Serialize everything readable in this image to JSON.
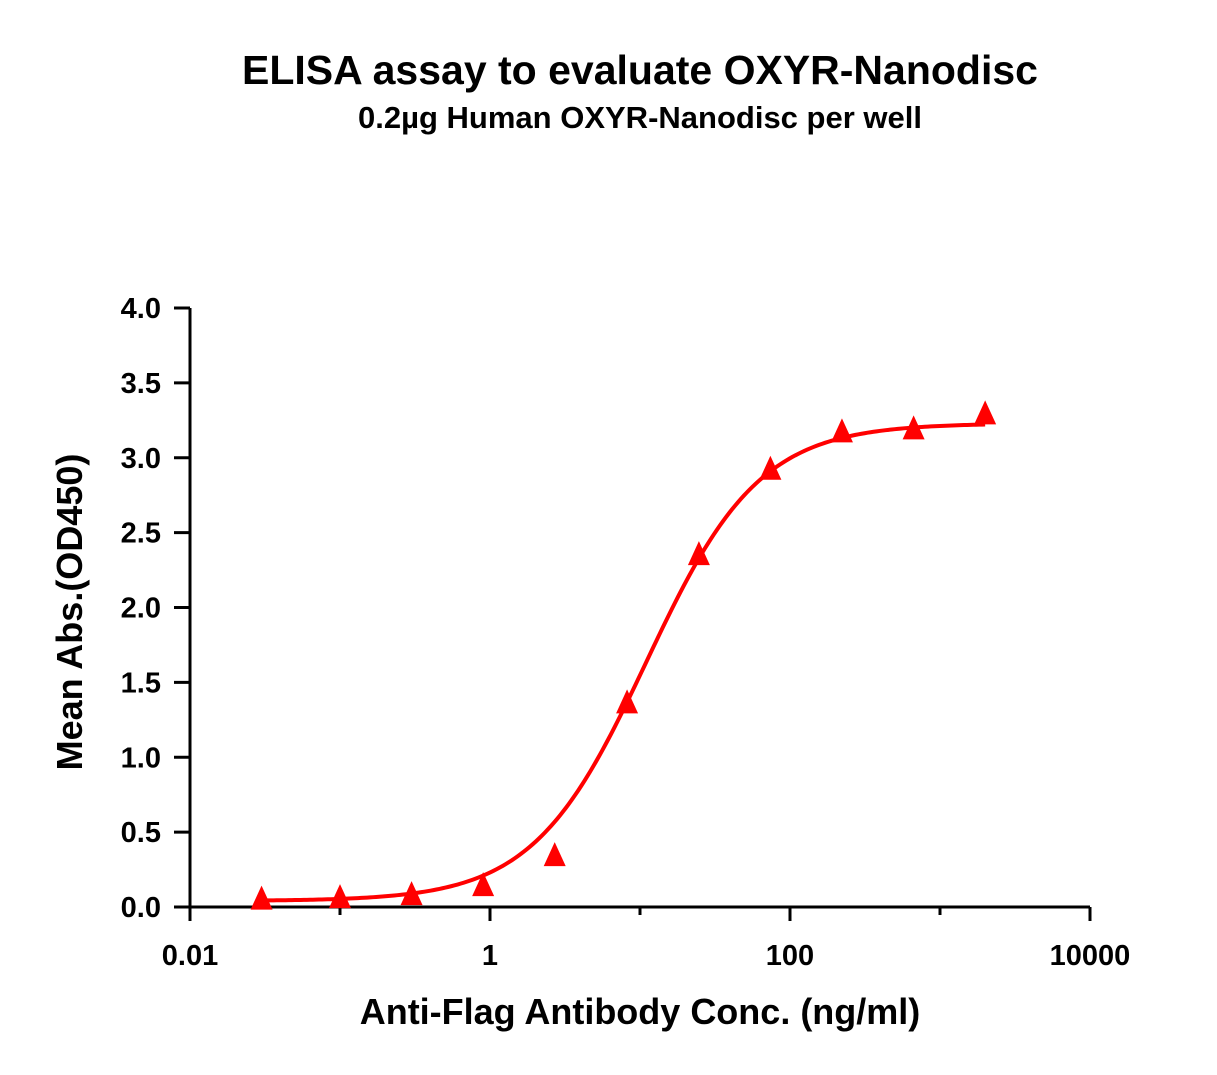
{
  "chart_data": {
    "type": "scatter",
    "title": "ELISA assay to evaluate OXYR-Nanodisc",
    "subtitle": "0.2µg Human OXYR-Nanodisc per well",
    "xlabel": "Anti-Flag Antibody Conc. (ng/ml)",
    "ylabel": "Mean Abs.(OD450)",
    "x_scale": "log",
    "xlim": [
      0.01,
      10000
    ],
    "ylim": [
      0,
      4
    ],
    "x_ticks": [
      0.01,
      1,
      100,
      10000
    ],
    "x_tick_labels": [
      "0.01",
      "1",
      "100",
      "10000"
    ],
    "y_ticks": [
      0,
      0.5,
      1,
      1.5,
      2,
      2.5,
      3,
      3.5,
      4
    ],
    "y_tick_labels": [
      "0.0",
      "0.5",
      "1.0",
      "1.5",
      "2.0",
      "2.5",
      "3.0",
      "3.5",
      "4.0"
    ],
    "grid": false,
    "series": [
      {
        "marker": "triangle",
        "color": "#ff0000",
        "x": [
          0.03,
          0.1,
          0.3,
          0.9,
          2.7,
          8.2,
          24.7,
          74,
          222,
          667,
          2000
        ],
        "y": [
          0.05,
          0.06,
          0.08,
          0.14,
          0.34,
          1.36,
          2.35,
          2.92,
          3.17,
          3.19,
          3.29
        ]
      }
    ],
    "fit_curve": {
      "type": "4PL",
      "color": "#ff0000",
      "bottom": 0.04,
      "top": 3.23,
      "ec50": 11,
      "hill": 1.15
    }
  }
}
